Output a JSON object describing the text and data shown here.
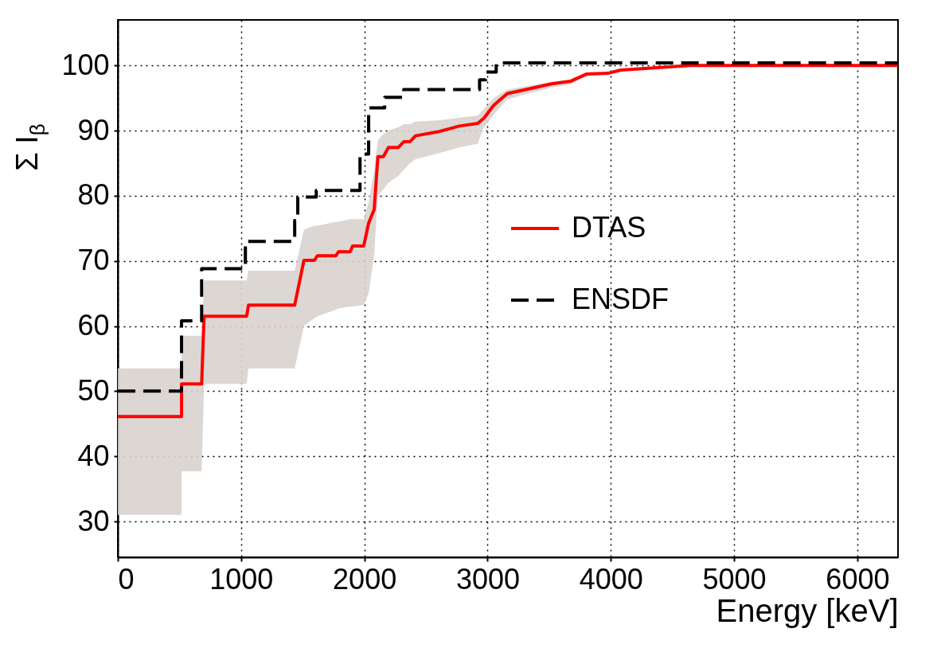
{
  "chart_data": {
    "type": "line",
    "xlabel": "Energy [keV]",
    "ylabel": "Σ I$_{β}$",
    "xlim": [
      0,
      6330
    ],
    "ylim": [
      24.5,
      107
    ],
    "xticks": [
      0,
      1000,
      2000,
      3000,
      4000,
      5000,
      6000
    ],
    "yticks": [
      30,
      40,
      50,
      60,
      70,
      80,
      90,
      100
    ],
    "grid": true,
    "legend": "right",
    "series": [
      {
        "name": "DTAS",
        "color": "#ff0000",
        "line_style": "solid",
        "x": [
          0,
          517,
          517,
          680,
          700,
          1045,
          1060,
          1435,
          1510,
          1595,
          1620,
          1770,
          1790,
          1885,
          1905,
          1995,
          2035,
          2080,
          2110,
          2155,
          2195,
          2275,
          2320,
          2370,
          2415,
          2615,
          2770,
          2920,
          2970,
          3050,
          3160,
          3310,
          3520,
          3675,
          3805,
          3975,
          4080,
          4645,
          6330
        ],
        "values": [
          46.1,
          46.1,
          51.1,
          51.1,
          61.5,
          61.5,
          63.2,
          63.2,
          70.1,
          70.1,
          70.8,
          70.8,
          71.4,
          71.4,
          72.3,
          72.3,
          75.8,
          77.9,
          86.0,
          86.0,
          87.4,
          87.4,
          88.3,
          88.3,
          89.2,
          89.9,
          90.7,
          91.1,
          91.9,
          93.9,
          95.7,
          96.3,
          97.2,
          97.6,
          98.7,
          98.8,
          99.3,
          100,
          100
        ],
        "lower": [
          31.0,
          31.0,
          37.7,
          37.7,
          51.1,
          51.1,
          53.5,
          53.5,
          60.0,
          61.2,
          61.5,
          62.5,
          62.7,
          63.0,
          63.0,
          63.2,
          65,
          71,
          80,
          81,
          82,
          83,
          84,
          85,
          85.6,
          86.6,
          87.4,
          88.0,
          90.5,
          92.5,
          94.8,
          95.6,
          96.6,
          97.1,
          98.4,
          98.6,
          99.2,
          100,
          100
        ],
        "upper": [
          53.5,
          53.5,
          58.5,
          58.5,
          67.0,
          67.0,
          68.5,
          68.5,
          74.8,
          75.4,
          75.4,
          76.0,
          76.0,
          76.4,
          76.4,
          76.4,
          79,
          84,
          88.5,
          89.5,
          90,
          90.5,
          91,
          91,
          91.4,
          91.6,
          92,
          92.3,
          93.3,
          95,
          96.3,
          96.8,
          97.5,
          97.8,
          98.9,
          98.9,
          99.4,
          100,
          100
        ]
      },
      {
        "name": "ENSDF",
        "type": "step",
        "color": "#000000",
        "line_style": "dashed",
        "x": [
          0,
          517,
          680,
          1035,
          1435,
          1460,
          1610,
          1965,
          2035,
          2165,
          2320,
          2935,
          2985,
          3070,
          6330
        ],
        "values": [
          50,
          60.8,
          68.8,
          73.0,
          76.2,
          79.8,
          80.8,
          86.4,
          93.5,
          95.1,
          96.3,
          97.8,
          99.0,
          100.4,
          100.4
        ]
      }
    ]
  }
}
